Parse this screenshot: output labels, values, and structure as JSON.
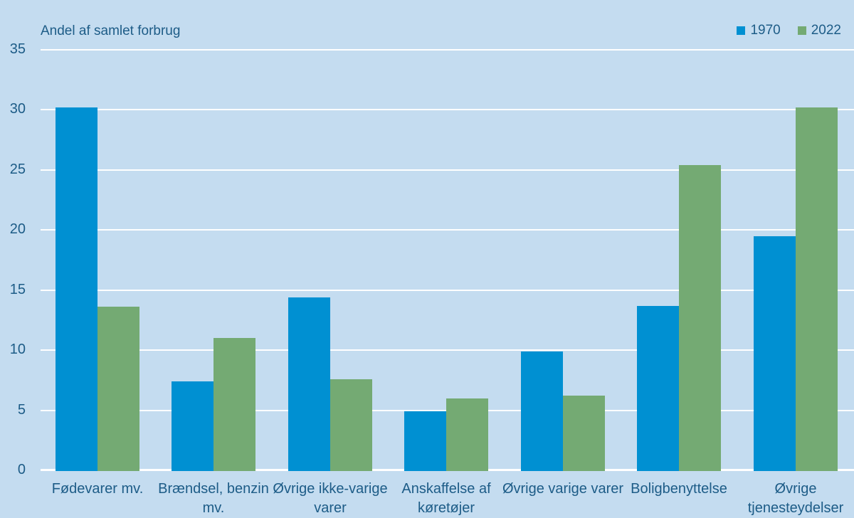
{
  "title": "Andel af samlet forbrug",
  "colors": {
    "background": "#c4dcf0",
    "grid": "#ffffff",
    "text": "#1d5c87",
    "bar_1970": "#0090d2",
    "bar_2022": "#74aa73"
  },
  "legend": {
    "items": [
      {
        "label": "1970",
        "color": "#0090d2"
      },
      {
        "label": "2022",
        "color": "#74aa73"
      }
    ]
  },
  "chart_data": {
    "type": "bar",
    "title": "Andel af samlet forbrug",
    "categories": [
      "Fødevarer mv.",
      "Brændsel, benzin\nmv.",
      "Øvrige ikke-varige\nvarer",
      "Anskaffelse af\nkøretøjer",
      "Øvrige varige varer",
      "Boligbenyttelse",
      "Øvrige\ntjenesteydelser"
    ],
    "series": [
      {
        "name": "1970",
        "color": "#0090d2",
        "values": [
          30.2,
          7.4,
          14.4,
          4.9,
          9.9,
          13.7,
          19.5
        ]
      },
      {
        "name": "2022",
        "color": "#74aa73",
        "values": [
          13.6,
          11.0,
          7.6,
          6.0,
          6.2,
          25.4,
          30.2
        ]
      }
    ],
    "xlabel": "",
    "ylabel": "Andel af samlet forbrug",
    "ylim": [
      0,
      35
    ],
    "yticks": [
      0,
      5,
      10,
      15,
      20,
      25,
      30,
      35
    ],
    "grid": true,
    "legend_position": "top-right"
  }
}
